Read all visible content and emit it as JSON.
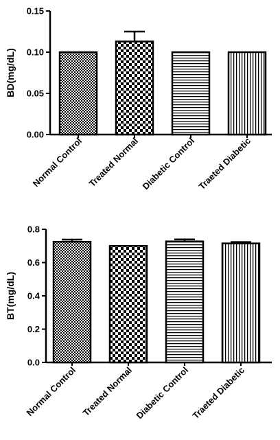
{
  "chart_data": [
    {
      "type": "bar",
      "categories": [
        "Normal Control",
        "Treated Normal",
        "Diabetic Control",
        "Traeted Diabetic"
      ],
      "values": [
        0.1,
        0.113,
        0.1,
        0.1
      ],
      "errors": [
        0,
        0.012,
        0,
        0
      ],
      "patterns": [
        "checker-small",
        "checker-large",
        "horizontal-lines",
        "vertical-lines"
      ],
      "ylabel": "BD(mg/dL)",
      "xlabel": "",
      "title": "",
      "ylim": [
        0,
        0.15
      ],
      "yticks": [
        "0.00",
        "0.05",
        "0.10",
        "0.15"
      ],
      "ytick_values": [
        0,
        0.05,
        0.1,
        0.15
      ],
      "grid": false,
      "legend": "none"
    },
    {
      "type": "bar",
      "categories": [
        "Normal Control",
        "Treated Normal",
        "Diabetic Control",
        "Traeted Diabetic"
      ],
      "values": [
        0.725,
        0.7,
        0.727,
        0.715
      ],
      "errors": [
        0.013,
        0,
        0.012,
        0.008
      ],
      "patterns": [
        "checker-small",
        "checker-large",
        "horizontal-lines",
        "vertical-lines"
      ],
      "ylabel": "BT(mg/dL)",
      "xlabel": "",
      "title": "",
      "ylim": [
        0,
        0.8
      ],
      "yticks": [
        "0.0",
        "0.2",
        "0.4",
        "0.6",
        "0.8"
      ],
      "ytick_values": [
        0,
        0.2,
        0.4,
        0.6,
        0.8
      ],
      "grid": false,
      "legend": "none"
    }
  ]
}
